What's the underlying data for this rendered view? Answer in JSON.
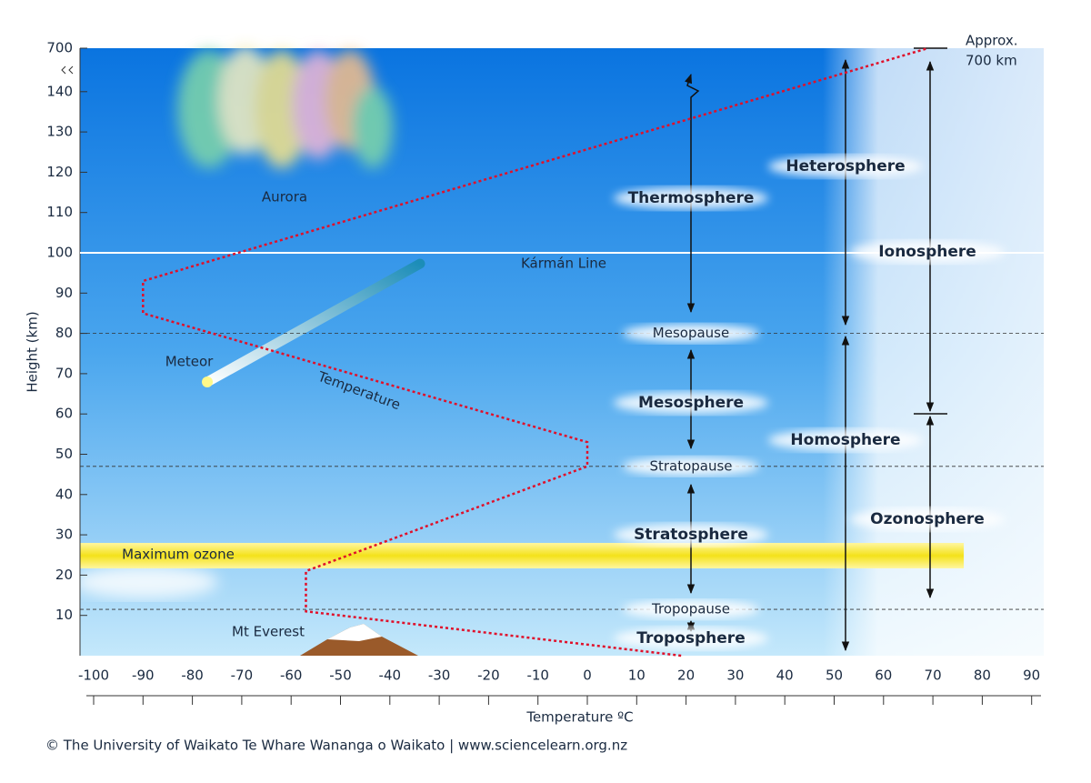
{
  "y_axis": {
    "label": "Height (km)",
    "ticks": [
      700,
      140,
      130,
      120,
      110,
      100,
      90,
      80,
      70,
      60,
      50,
      40,
      30,
      20,
      10
    ]
  },
  "x_axis": {
    "label": "Temperature ºC",
    "ticks": [
      -100,
      -90,
      -80,
      -70,
      -60,
      -50,
      -40,
      -30,
      -20,
      -10,
      0,
      10,
      20,
      30,
      40,
      50,
      60,
      70,
      80,
      90
    ]
  },
  "temperature_profile": {
    "label": "Temperature",
    "temperature": [
      19,
      -57,
      -57,
      0,
      0,
      -90,
      -90,
      69
    ],
    "height": [
      0,
      11,
      21,
      47,
      53,
      85,
      93,
      700
    ]
  },
  "karman_line": {
    "label": "Kármán Line",
    "height": 100
  },
  "boundaries": [
    {
      "label": "Mesopause",
      "height": 80
    },
    {
      "label": "Stratopause",
      "height": 47
    },
    {
      "label": "Tropopause",
      "height": 11.5
    }
  ],
  "layers": [
    "Thermosphere",
    "Mesosphere",
    "Stratosphere",
    "Troposphere",
    "Heterosphere",
    "Homosphere",
    "Ionosphere",
    "Ozonosphere"
  ],
  "features": [
    "Aurora",
    "Meteor",
    "Maximum ozone",
    "Mt Everest"
  ],
  "approx": [
    "Approx.",
    "700 km"
  ],
  "footer": "© The University of Waikato Te Whare Wananga o Waikato | www.sciencelearn.org.nz"
}
